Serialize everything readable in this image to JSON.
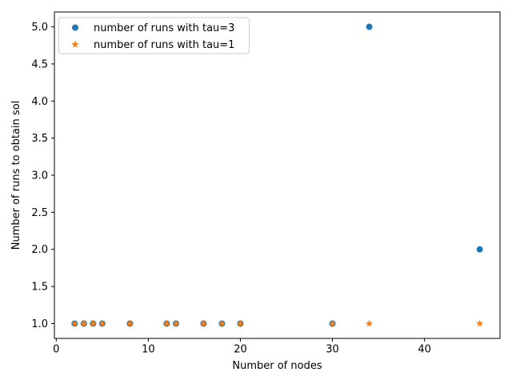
{
  "figure": {
    "background": "#ffffff"
  },
  "chart_data": {
    "type": "scatter",
    "title": "",
    "xlabel": "Number of nodes",
    "ylabel": "Number of runs to obtain sol",
    "xlim": [
      -0.2,
      48.2
    ],
    "ylim": [
      0.8,
      5.2
    ],
    "xticks": [
      0,
      10,
      20,
      30,
      40
    ],
    "yticks": [
      1.0,
      1.5,
      2.0,
      2.5,
      3.0,
      3.5,
      4.0,
      4.5,
      5.0
    ],
    "grid": false,
    "legend": {
      "position": "upper left",
      "border_color": "#cccccc",
      "background": "#ffffff",
      "entries": [
        {
          "label": "number of runs with tau=3",
          "marker": "circle-icon",
          "color": "#1f77b4"
        },
        {
          "label": "number of runs with tau=1",
          "marker": "star-icon",
          "color": "#ff7f0e"
        }
      ]
    },
    "series": [
      {
        "name": "number of runs with tau=3",
        "marker": "circle",
        "color": "#1f77b4",
        "x": [
          2,
          3,
          4,
          5,
          8,
          12,
          13,
          16,
          18,
          20,
          30,
          34,
          46
        ],
        "y": [
          1,
          1,
          1,
          1,
          1,
          1,
          1,
          1,
          1,
          1,
          1,
          5,
          2
        ]
      },
      {
        "name": "number of runs with tau=1",
        "marker": "star",
        "color": "#ff7f0e",
        "x": [
          2,
          3,
          4,
          5,
          8,
          12,
          13,
          16,
          18,
          20,
          30,
          34,
          46
        ],
        "y": [
          1,
          1,
          1,
          1,
          1,
          1,
          1,
          1,
          1,
          1,
          1,
          1,
          1
        ]
      }
    ]
  }
}
